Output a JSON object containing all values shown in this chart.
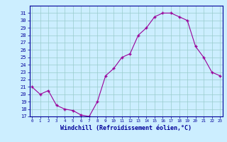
{
  "x": [
    0,
    1,
    2,
    3,
    4,
    5,
    6,
    7,
    8,
    9,
    10,
    11,
    12,
    13,
    14,
    15,
    16,
    17,
    18,
    19,
    20,
    21,
    22,
    23
  ],
  "y": [
    21,
    20,
    20.5,
    18.5,
    18,
    17.8,
    17.2,
    17,
    19,
    22.5,
    23.5,
    25,
    25.5,
    28,
    29,
    30.5,
    31,
    31,
    30.5,
    30,
    26.5,
    25,
    23,
    22.5
  ],
  "line_color": "#990099",
  "marker": "+",
  "bg_color": "#cceeff",
  "grid_color": "#99cccc",
  "xlabel": "Windchill (Refroidissement éolien,°C)",
  "xlabel_color": "#000099",
  "ylim": [
    17,
    32
  ],
  "yticks": [
    17,
    18,
    19,
    20,
    21,
    22,
    23,
    24,
    25,
    26,
    27,
    28,
    29,
    30,
    31
  ],
  "xticks": [
    0,
    1,
    2,
    3,
    4,
    5,
    6,
    7,
    8,
    9,
    10,
    11,
    12,
    13,
    14,
    15,
    16,
    17,
    18,
    19,
    20,
    21,
    22,
    23
  ],
  "tick_color": "#000099",
  "spine_color": "#000099"
}
